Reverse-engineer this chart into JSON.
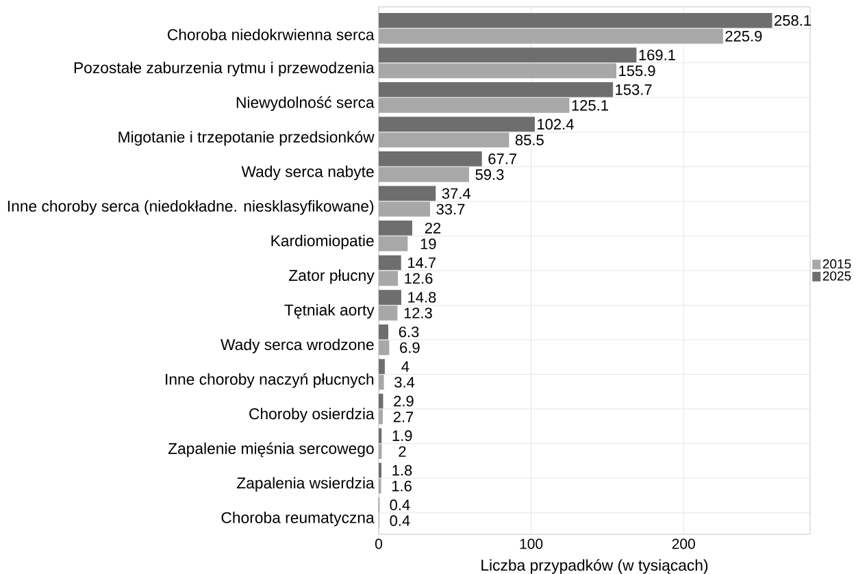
{
  "chart_data": {
    "type": "bar",
    "orientation": "horizontal",
    "xlabel": "Liczba przypadków (w tysiącach)",
    "categories": [
      "Choroba niedokrwienna serca",
      "Pozostałe zaburzenia rytmu i przewodzenia",
      "Niewydolność serca",
      "Migotanie i trzepotanie przedsionków",
      "Wady serca nabyte",
      "Inne choroby serca (niedokładne. niesklasyfikowane)",
      "Kardiomiopatie",
      "Zator płucny",
      "Tętniak aorty",
      "Wady serca wrodzone",
      "Inne choroby naczyń płucnych",
      "Choroby osierdzia",
      "Zapalenie mięśnia sercowego",
      "Zapalenia wsierdzia",
      "Choroba reumatyczna"
    ],
    "series": [
      {
        "name": "2015",
        "color": "#a8a8a8",
        "values": [
          225.9,
          155.9,
          125.1,
          85.5,
          59.3,
          33.7,
          19,
          12.6,
          12.3,
          6.9,
          3.4,
          2.7,
          2,
          1.6,
          0.4
        ]
      },
      {
        "name": "2025",
        "color": "#6e6e6e",
        "values": [
          258.1,
          169.1,
          153.7,
          102.4,
          67.7,
          37.4,
          22,
          14.7,
          14.8,
          6.3,
          4,
          2.9,
          1.9,
          1.8,
          0.4
        ]
      }
    ],
    "xlim": [
      0,
      283
    ],
    "xticks": [
      0,
      100,
      200
    ],
    "grid": true,
    "legend": "right",
    "data_labels": true
  }
}
